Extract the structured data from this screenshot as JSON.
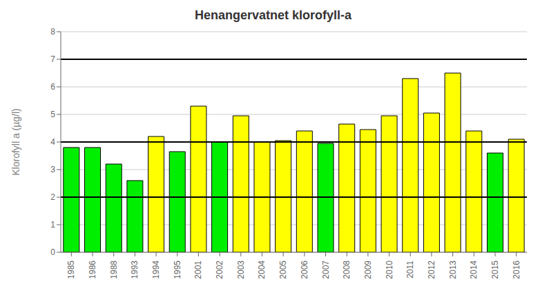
{
  "chart_data": {
    "type": "bar",
    "title": "Henangervatnet klorofyll-a",
    "ylabel": "Klorofyll a (µg/l)",
    "categories": [
      "1985",
      "1986",
      "1988",
      "1993",
      "1994",
      "1995",
      "2001",
      "2002",
      "2003",
      "2004",
      "2005",
      "2006",
      "2007",
      "2008",
      "2009",
      "2010",
      "2011",
      "2012",
      "2013",
      "2014",
      "2015",
      "2016"
    ],
    "values": [
      3.8,
      3.8,
      3.2,
      2.6,
      4.2,
      3.65,
      5.3,
      4.0,
      4.95,
      4.0,
      4.05,
      4.4,
      3.95,
      4.65,
      4.45,
      4.95,
      6.3,
      5.05,
      6.5,
      4.4,
      3.6,
      4.1
    ],
    "colors": [
      "#00ee00",
      "#00ee00",
      "#00ee00",
      "#00ee00",
      "#ffff00",
      "#00ee00",
      "#ffff00",
      "#00ee00",
      "#ffff00",
      "#ffff00",
      "#ffff00",
      "#ffff00",
      "#00ee00",
      "#ffff00",
      "#ffff00",
      "#ffff00",
      "#ffff00",
      "#ffff00",
      "#ffff00",
      "#ffff00",
      "#00ee00",
      "#ffff00"
    ],
    "hlines": [
      2.0,
      4.0,
      7.0
    ],
    "ylim": [
      0,
      8
    ],
    "yticks": [
      0,
      1,
      2,
      3,
      4,
      5,
      6,
      7,
      8
    ],
    "grid": true
  }
}
